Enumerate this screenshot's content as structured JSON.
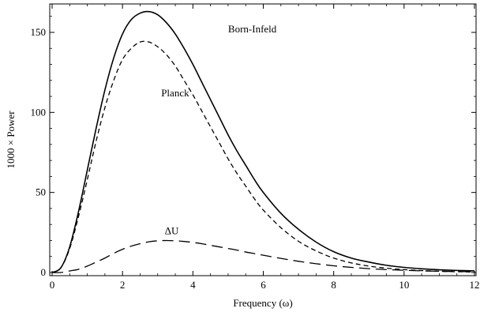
{
  "chart_data": {
    "type": "line",
    "title": "",
    "xlabel": "Frequency (ω)",
    "ylabel": "1000 × Power",
    "xlim": [
      0,
      12
    ],
    "ylim": [
      0,
      163
    ],
    "xticks": [
      0,
      2,
      4,
      6,
      8,
      10,
      12
    ],
    "yticks": [
      0,
      50,
      100,
      150
    ],
    "grid": false,
    "legend": "none",
    "x": [
      0,
      0.25,
      0.5,
      0.75,
      1,
      1.25,
      1.5,
      1.75,
      2,
      2.25,
      2.5,
      2.75,
      3,
      3.25,
      3.5,
      3.75,
      4,
      4.25,
      4.5,
      4.75,
      5,
      5.25,
      5.5,
      5.75,
      6,
      6.5,
      7,
      7.5,
      8,
      8.5,
      9,
      9.5,
      10,
      10.5,
      11,
      11.5,
      12
    ],
    "series": [
      {
        "name": "Born-Infeld",
        "style": "solid",
        "label_text": "Born-Infeld",
        "label_pos": [
          5.0,
          150
        ],
        "values": [
          0,
          3,
          16,
          38,
          64,
          90,
          114,
          134,
          149,
          158,
          162,
          163,
          161,
          156,
          149,
          140,
          130,
          119,
          108,
          97,
          86,
          76,
          67,
          58,
          50,
          37,
          27,
          19,
          13,
          9,
          6.5,
          4.5,
          3.2,
          2.3,
          1.7,
          1.3,
          1
        ]
      },
      {
        "name": "Planck",
        "style": "short-dash",
        "label_text": "Planck",
        "label_pos": [
          3.1,
          110
        ],
        "values": [
          0,
          3,
          15,
          35,
          58,
          82,
          103,
          120,
          133,
          140,
          144,
          144,
          141,
          136,
          129,
          120,
          111,
          101,
          91,
          81,
          71,
          62,
          54,
          46,
          39,
          28,
          19.5,
          13.5,
          9,
          6,
          4,
          2.7,
          1.8,
          1.2,
          0.8,
          0.5,
          0.3
        ]
      },
      {
        "name": "ΔU",
        "style": "long-dash",
        "label_text": "ΔU",
        "label_pos": [
          3.2,
          24
        ],
        "values": [
          0,
          0,
          1,
          2,
          4,
          6.5,
          9,
          12,
          14.5,
          16.5,
          18,
          19.2,
          19.8,
          20,
          19.8,
          19.4,
          18.8,
          18,
          17,
          16,
          15,
          14,
          12.8,
          11.8,
          10.8,
          8.8,
          7,
          5.5,
          4.2,
          3.2,
          2.4,
          1.8,
          1.4,
          1.0,
          0.8,
          0.6,
          0.5
        ]
      }
    ]
  }
}
